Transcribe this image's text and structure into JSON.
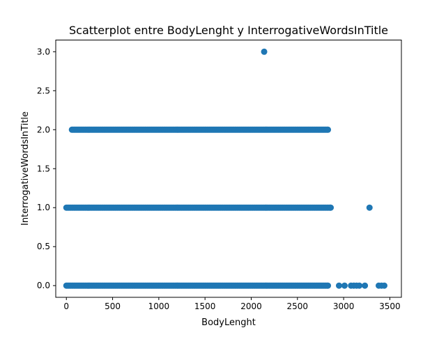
{
  "chart_data": {
    "type": "scatter",
    "title": "Scatterplot entre BodyLenght y InterrogativeWordsInTitle",
    "xlabel": "BodyLenght",
    "ylabel": "InterrogativeWordsInTitle",
    "xlim": [
      -115,
      3625
    ],
    "ylim": [
      -0.15,
      3.15
    ],
    "x_ticks": [
      0,
      500,
      1000,
      1500,
      2000,
      2500,
      3000,
      3500
    ],
    "x_tick_labels": [
      "0",
      "500",
      "1000",
      "1500",
      "2000",
      "2500",
      "3000",
      "3500"
    ],
    "y_ticks": [
      0.0,
      0.5,
      1.0,
      1.5,
      2.0,
      2.5,
      3.0
    ],
    "y_tick_labels": [
      "0.0",
      "0.5",
      "1.0",
      "1.5",
      "2.0",
      "2.5",
      "3.0"
    ],
    "grid": false,
    "marker_color": "#1f77b4",
    "point_bands": [
      {
        "y": 0,
        "x_min": 0,
        "x_max": 2830
      },
      {
        "y": 1,
        "x_min": 0,
        "x_max": 2860
      },
      {
        "y": 2,
        "x_min": 60,
        "x_max": 2830
      }
    ],
    "points": [
      {
        "x": 2140,
        "y": 3
      },
      {
        "x": 3280,
        "y": 1
      },
      {
        "x": 2950,
        "y": 0
      },
      {
        "x": 3010,
        "y": 0
      },
      {
        "x": 3080,
        "y": 0
      },
      {
        "x": 3110,
        "y": 0
      },
      {
        "x": 3140,
        "y": 0
      },
      {
        "x": 3170,
        "y": 0
      },
      {
        "x": 3230,
        "y": 0
      },
      {
        "x": 3380,
        "y": 0
      },
      {
        "x": 3410,
        "y": 0
      },
      {
        "x": 3440,
        "y": 0
      }
    ]
  }
}
